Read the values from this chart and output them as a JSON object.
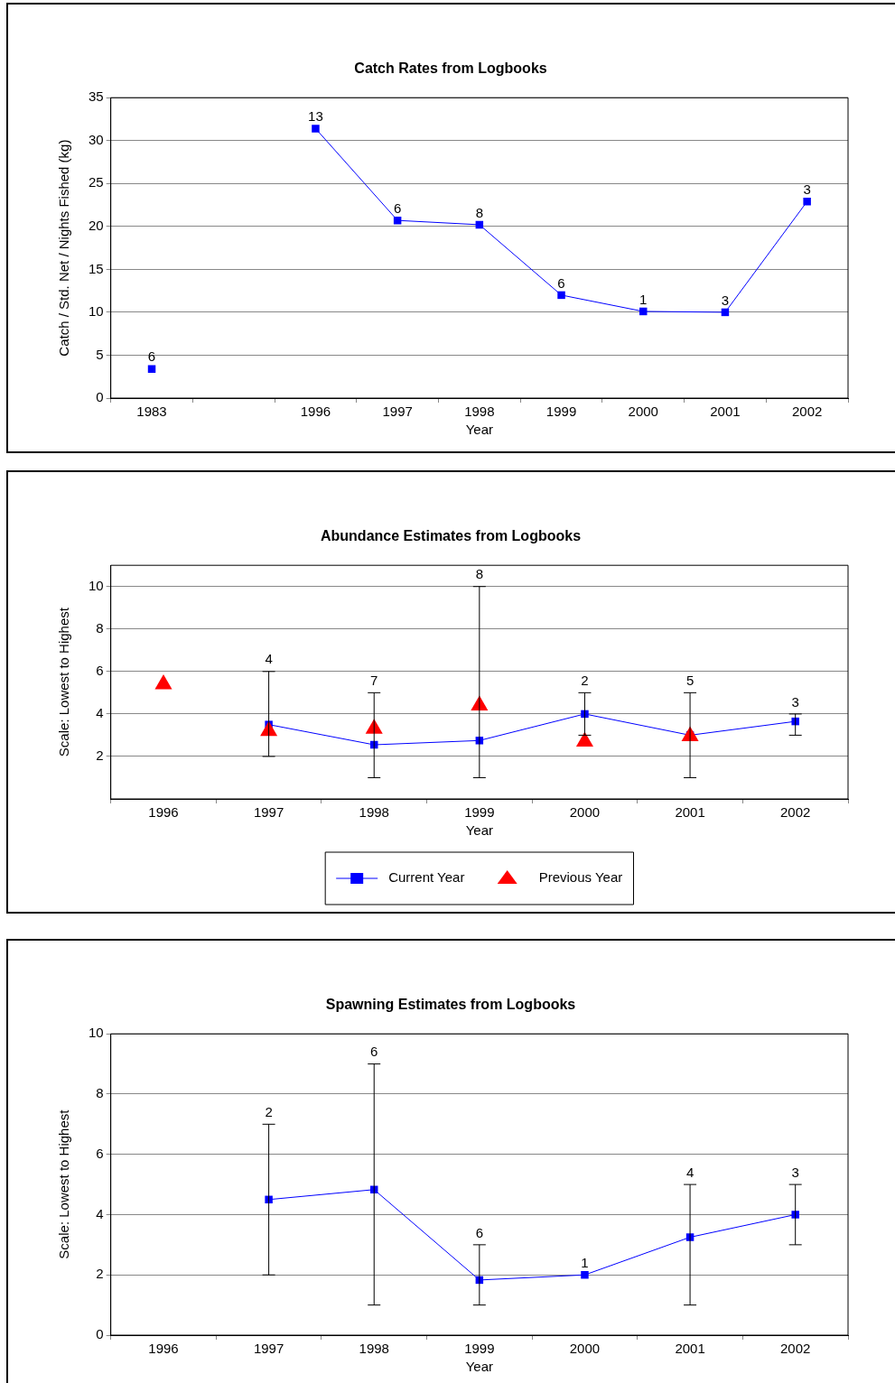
{
  "chart_data": [
    {
      "type": "line",
      "title": "Catch Rates from Logbooks",
      "xlabel": "Year",
      "ylabel": "Catch / Std. Net / Nights Fished (kg)",
      "categories": [
        "1983",
        null,
        "1996",
        "1997",
        "1998",
        "1999",
        "2000",
        "2001",
        "2002"
      ],
      "series": [
        {
          "color": "#0000ff",
          "values": [
            3.4,
            null,
            31.4,
            20.7,
            20.2,
            12.0,
            10.1,
            10.0,
            22.9
          ]
        }
      ],
      "annotations": [
        {
          "text": "6",
          "x": "1983",
          "y": 3.4
        },
        {
          "text": "13",
          "x": "1996",
          "y": 31.4
        },
        {
          "text": "6",
          "x": "1997",
          "y": 20.7
        },
        {
          "text": "8",
          "x": "1998",
          "y": 20.2
        },
        {
          "text": "6",
          "x": "1999",
          "y": 12.0
        },
        {
          "text": "1",
          "x": "2000",
          "y": 10.1
        },
        {
          "text": "3",
          "x": "2001",
          "y": 10.0
        },
        {
          "text": "3",
          "x": "2002",
          "y": 22.9
        }
      ],
      "ylim": [
        0,
        35
      ],
      "yticks": [
        0,
        5,
        10,
        15,
        20,
        25,
        30,
        35
      ],
      "grid": "y",
      "marker": "square",
      "legend": false
    },
    {
      "type": "line",
      "title": "Abundance Estimates from Logbooks",
      "xlabel": "Year",
      "ylabel": "Scale: Lowest to Highest",
      "categories": [
        "1996",
        "1997",
        "1998",
        "1999",
        "2000",
        "2001",
        "2002"
      ],
      "series": [
        {
          "name": "Current Year",
          "color": "#0000ff",
          "marker": "square",
          "values": [
            null,
            3.5,
            2.55,
            2.75,
            4.0,
            3.0,
            3.65
          ],
          "errors": [
            null,
            [
              2,
              6
            ],
            [
              1,
              5
            ],
            [
              1,
              10
            ],
            [
              3,
              5
            ],
            [
              1,
              5
            ],
            [
              3,
              4
            ]
          ]
        },
        {
          "name": "Previous Year",
          "type": "scatter",
          "color": "#ff0000",
          "marker": "triangle",
          "values": [
            5.4,
            3.2,
            3.3,
            4.4,
            2.7,
            2.95,
            null
          ]
        }
      ],
      "annotations": [
        {
          "text": "4",
          "x": "1997",
          "y": 6
        },
        {
          "text": "7",
          "x": "1998",
          "y": 5
        },
        {
          "text": "8",
          "x": "1999",
          "y": 10
        },
        {
          "text": "2",
          "x": "2000",
          "y": 5
        },
        {
          "text": "5",
          "x": "2001",
          "y": 5
        },
        {
          "text": "3",
          "x": "2002",
          "y": 4
        }
      ],
      "ylim": [
        0,
        11
      ],
      "yticks": [
        2,
        4,
        6,
        8,
        10
      ],
      "grid": "y",
      "legend": "bottom"
    },
    {
      "type": "line",
      "title": "Spawning Estimates from Logbooks",
      "xlabel": "Year",
      "ylabel": "Scale: Lowest to Highest",
      "categories": [
        "1996",
        "1997",
        "1998",
        "1999",
        "2000",
        "2001",
        "2002"
      ],
      "series": [
        {
          "color": "#0000ff",
          "values": [
            null,
            4.5,
            4.83,
            1.83,
            2.0,
            3.25,
            4.0
          ],
          "errors": [
            null,
            [
              2,
              7
            ],
            [
              1,
              9
            ],
            [
              1,
              3
            ],
            null,
            [
              1,
              5
            ],
            [
              3,
              5
            ]
          ]
        }
      ],
      "annotations": [
        {
          "text": "2",
          "x": "1997",
          "y": 7
        },
        {
          "text": "6",
          "x": "1998",
          "y": 9
        },
        {
          "text": "6",
          "x": "1999",
          "y": 3
        },
        {
          "text": "1",
          "x": "2000",
          "y": 2
        },
        {
          "text": "4",
          "x": "2001",
          "y": 5
        },
        {
          "text": "3",
          "x": "2002",
          "y": 5
        }
      ],
      "ylim": [
        0,
        10
      ],
      "yticks": [
        0,
        2,
        4,
        6,
        8,
        10
      ],
      "grid": "y",
      "marker": "square",
      "legend": false
    }
  ]
}
